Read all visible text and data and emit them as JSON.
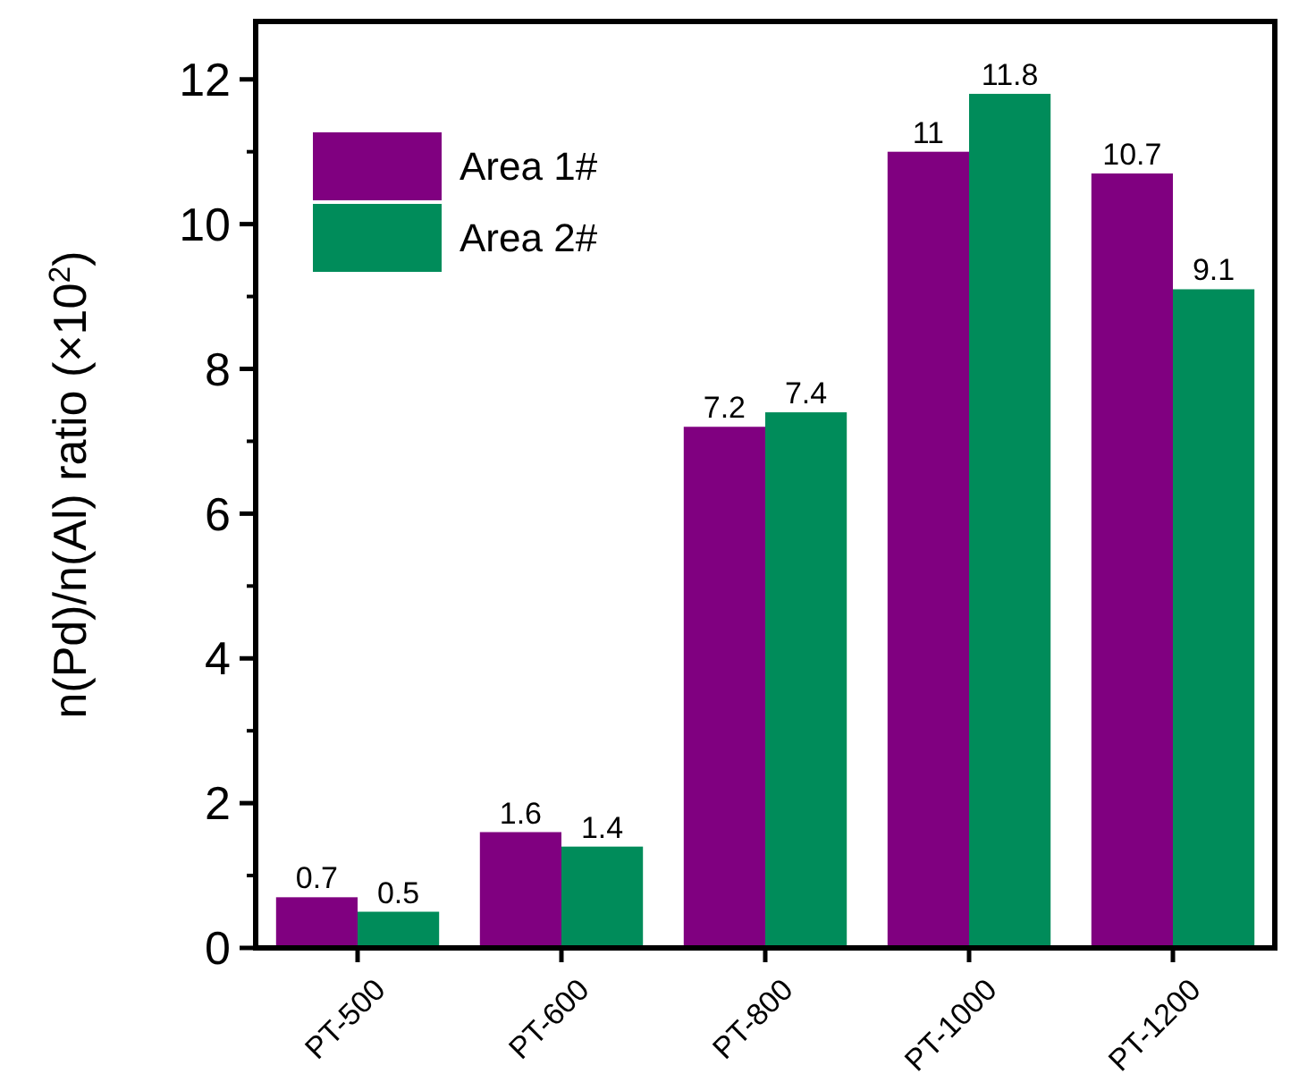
{
  "chart_data": {
    "type": "bar",
    "ylabel": "n(Pd)/n(Al) ratio (×10$^{2}$)",
    "categories": [
      "PT-500",
      "PT-600",
      "PT-800",
      "PT-1000",
      "PT-1200"
    ],
    "series": [
      {
        "name": "Area 1#",
        "color": "#800080",
        "values": [
          0.7,
          1.6,
          7.2,
          11,
          10.7
        ]
      },
      {
        "name": "Area 2#",
        "color": "#008c5a",
        "values": [
          0.5,
          1.4,
          7.4,
          11.8,
          9.1
        ]
      }
    ],
    "ylim": [
      0,
      12.8
    ],
    "yticks": [
      0,
      2,
      4,
      6,
      8,
      10,
      12
    ],
    "grid": false,
    "legend": "top left",
    "data_labels": true
  }
}
